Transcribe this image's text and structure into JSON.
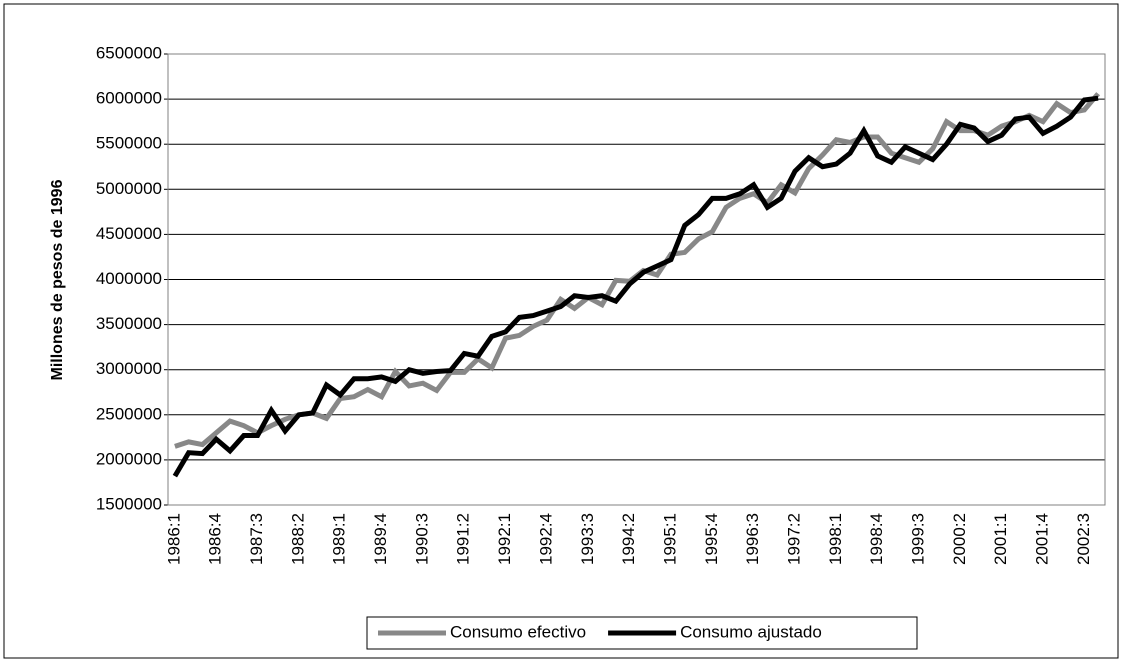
{
  "chart_data": {
    "type": "line",
    "y_label": "Millones de pesos de 1996",
    "categories": [
      "1986:1",
      null,
      null,
      "1986:4",
      null,
      null,
      "1987:3",
      null,
      null,
      "1988:2",
      null,
      null,
      "1989:1",
      null,
      null,
      "1989:4",
      null,
      null,
      "1990:3",
      null,
      null,
      "1991:2",
      null,
      null,
      "1992:1",
      null,
      null,
      "1992:4",
      null,
      null,
      "1993:3",
      null,
      null,
      "1994:2",
      null,
      null,
      "1995:1",
      null,
      null,
      "1995:4",
      null,
      null,
      "1996:3",
      null,
      null,
      "1997:2",
      null,
      null,
      "1998:1",
      null,
      null,
      "1998:4",
      null,
      null,
      "1999:3",
      null,
      null,
      "2000:2",
      null,
      null,
      "2001:1",
      null,
      null,
      "2001:4",
      null,
      null,
      "2002:3",
      null
    ],
    "series": [
      {
        "name": "Consumo efectivo",
        "color": "#888888",
        "values": [
          2150000,
          2200000,
          2170000,
          2300000,
          2430000,
          2380000,
          2300000,
          2380000,
          2450000,
          2500000,
          2520000,
          2460000,
          2680000,
          2700000,
          2780000,
          2700000,
          2980000,
          2820000,
          2850000,
          2770000,
          2970000,
          2970000,
          3120000,
          3020000,
          3350000,
          3380000,
          3480000,
          3550000,
          3780000,
          3680000,
          3800000,
          3720000,
          3990000,
          3980000,
          4100000,
          4050000,
          4280000,
          4300000,
          4450000,
          4530000,
          4800000,
          4900000,
          4950000,
          4850000,
          5050000,
          4960000,
          5230000,
          5380000,
          5550000,
          5520000,
          5580000,
          5580000,
          5400000,
          5350000,
          5300000,
          5450000,
          5750000,
          5650000,
          5650000,
          5600000,
          5700000,
          5750000,
          5820000,
          5750000,
          5950000,
          5850000,
          5880000,
          6060000
        ]
      },
      {
        "name": "Consumo ajustado",
        "color": "#000000",
        "values": [
          1820000,
          2080000,
          2070000,
          2230000,
          2100000,
          2270000,
          2270000,
          2550000,
          2320000,
          2500000,
          2520000,
          2830000,
          2720000,
          2900000,
          2900000,
          2920000,
          2870000,
          3000000,
          2960000,
          2980000,
          2990000,
          3180000,
          3150000,
          3370000,
          3420000,
          3580000,
          3600000,
          3650000,
          3700000,
          3820000,
          3800000,
          3820000,
          3760000,
          3950000,
          4080000,
          4150000,
          4220000,
          4600000,
          4720000,
          4900000,
          4900000,
          4950000,
          5050000,
          4800000,
          4900000,
          5200000,
          5350000,
          5250000,
          5280000,
          5400000,
          5650000,
          5370000,
          5300000,
          5470000,
          5400000,
          5330000,
          5500000,
          5720000,
          5680000,
          5530000,
          5600000,
          5780000,
          5800000,
          5620000,
          5700000,
          5800000,
          5990000,
          6010000
        ]
      }
    ],
    "ylim": [
      1500000,
      6500000
    ],
    "yticks": [
      1500000,
      2000000,
      2500000,
      3000000,
      3500000,
      4000000,
      4500000,
      5000000,
      5500000,
      6000000,
      6500000
    ],
    "grid": true,
    "legend": "bottom"
  }
}
